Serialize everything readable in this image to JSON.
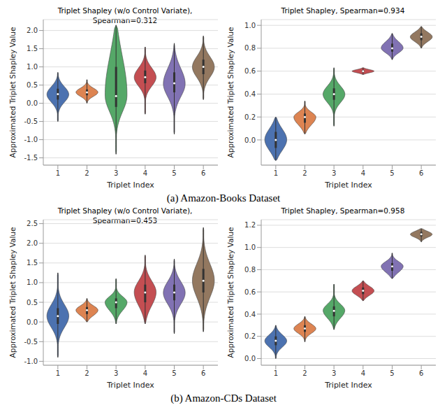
{
  "chart_data": [
    {
      "type": "violin",
      "title": "Triplet Shapley (w/o Control Variate), Spearman=0.312",
      "x_label": "Triplet Index",
      "y_label": "Approximated Triplet Shapley Value",
      "categories": [
        "1",
        "2",
        "3",
        "4",
        "5",
        "6"
      ],
      "min": [
        -0.5,
        0.0,
        -1.4,
        -0.3,
        -0.85,
        0.1
      ],
      "q1": [
        0.1,
        0.22,
        -0.1,
        0.55,
        0.3,
        0.8
      ],
      "median": [
        0.25,
        0.3,
        0.2,
        0.72,
        0.55,
        1.0
      ],
      "q3": [
        0.4,
        0.38,
        1.0,
        0.9,
        0.85,
        1.2
      ],
      "max": [
        0.85,
        0.65,
        2.15,
        1.55,
        1.65,
        1.85
      ],
      "colors": [
        "#4c72b0",
        "#dd8452",
        "#55a868",
        "#c44e52",
        "#8172b3",
        "#937860"
      ],
      "ylim": [
        -1.7,
        2.3
      ],
      "yticks": [
        -1.5,
        {
          "value": -1,
          "label": "-1.0"
        },
        -0.5,
        {
          "value": 0,
          "label": "0.0"
        },
        0.5,
        {
          "value": 1,
          "label": "1.0"
        },
        1.5,
        {
          "value": 2,
          "label": "2.0"
        }
      ],
      "grid": true
    },
    {
      "type": "violin",
      "title": "Triplet Shapley, Spearman=0.934",
      "x_label": "Triplet Index",
      "y_label": "Approximated Triplet Shapley Value",
      "categories": [
        "1",
        "2",
        "3",
        "4",
        "5",
        "6"
      ],
      "min": [
        -0.18,
        0.05,
        0.12,
        0.57,
        0.7,
        0.8
      ],
      "q1": [
        -0.07,
        0.15,
        0.35,
        0.59,
        0.77,
        0.87
      ],
      "median": [
        0.0,
        0.2,
        0.4,
        0.6,
        0.8,
        0.9
      ],
      "q3": [
        0.07,
        0.23,
        0.45,
        0.61,
        0.84,
        0.93
      ],
      "max": [
        0.2,
        0.34,
        0.63,
        0.63,
        0.93,
        0.99
      ],
      "colors": [
        "#4c72b0",
        "#dd8452",
        "#55a868",
        "#c44e52",
        "#8172b3",
        "#937860"
      ],
      "ylim": [
        -0.22,
        1.05
      ],
      "yticks": [
        {
          "value": 0,
          "label": "0.0"
        },
        0.2,
        0.4,
        0.6,
        0.8,
        {
          "value": 1,
          "label": "1.0"
        }
      ],
      "grid": true
    },
    {
      "type": "violin",
      "title": "Triplet Shapley (w/o Control Variate), Spearman=0.453",
      "x_label": "Triplet Index",
      "y_label": "Approximated Triplet Shapley Value",
      "categories": [
        "1",
        "2",
        "3",
        "4",
        "5",
        "6"
      ],
      "min": [
        -0.9,
        0.0,
        -0.05,
        -0.05,
        -0.3,
        -0.25
      ],
      "q1": [
        -0.05,
        0.2,
        0.35,
        0.5,
        0.55,
        0.75
      ],
      "median": [
        0.15,
        0.3,
        0.5,
        0.75,
        0.75,
        1.05
      ],
      "q3": [
        0.35,
        0.38,
        0.6,
        0.95,
        0.95,
        1.35
      ],
      "max": [
        1.25,
        0.6,
        1.1,
        1.7,
        1.6,
        2.4
      ],
      "colors": [
        "#4c72b0",
        "#dd8452",
        "#55a868",
        "#c44e52",
        "#8172b3",
        "#937860"
      ],
      "ylim": [
        -1.1,
        2.6
      ],
      "yticks": [
        {
          "value": -1,
          "label": "-1.0"
        },
        -0.5,
        {
          "value": 0,
          "label": "0.0"
        },
        0.5,
        {
          "value": 1,
          "label": "1.0"
        },
        1.5,
        {
          "value": 2,
          "label": "2.0"
        },
        2.5
      ],
      "grid": true
    },
    {
      "type": "violin",
      "title": "Triplet Shapley, Spearman=0.958",
      "x_label": "Triplet Index",
      "y_label": "Approximated Triplet Shapley Value",
      "categories": [
        "1",
        "2",
        "3",
        "4",
        "5",
        "6"
      ],
      "min": [
        0.0,
        0.15,
        0.26,
        0.52,
        0.72,
        1.05
      ],
      "q1": [
        0.12,
        0.24,
        0.38,
        0.58,
        0.79,
        1.1
      ],
      "median": [
        0.16,
        0.27,
        0.43,
        0.61,
        0.83,
        1.12
      ],
      "q3": [
        0.2,
        0.3,
        0.47,
        0.64,
        0.86,
        1.14
      ],
      "max": [
        0.3,
        0.38,
        0.67,
        0.7,
        0.95,
        1.17
      ],
      "colors": [
        "#4c72b0",
        "#dd8452",
        "#55a868",
        "#c44e52",
        "#8172b3",
        "#937860"
      ],
      "ylim": [
        -0.06,
        1.25
      ],
      "yticks": [
        {
          "value": 0,
          "label": "0.0"
        },
        0.2,
        0.4,
        0.6,
        0.8,
        {
          "value": 1,
          "label": "1.0"
        },
        1.2
      ],
      "grid": true
    }
  ],
  "captions": [
    "(a) Amazon-Books Dataset",
    "(b) Amazon-CDs Dataset"
  ]
}
